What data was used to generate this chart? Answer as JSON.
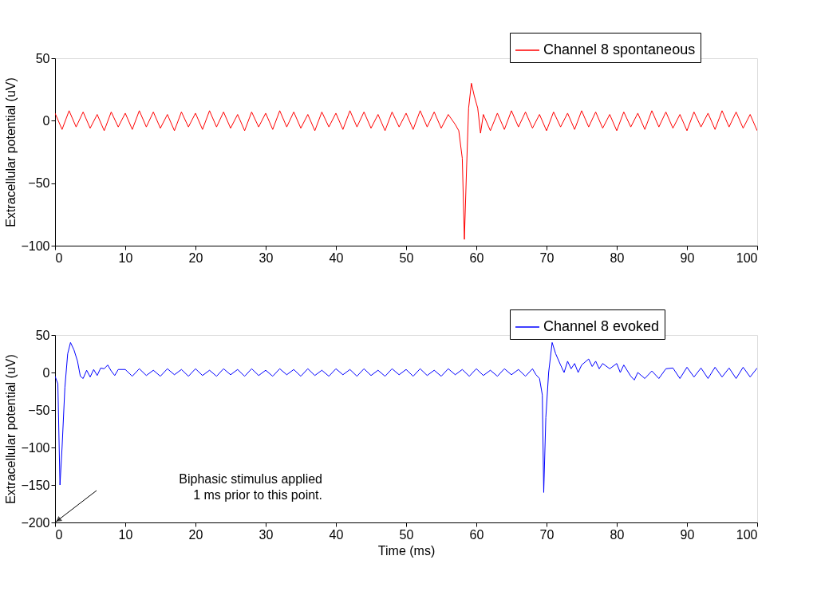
{
  "chart_data": [
    {
      "type": "line",
      "ylabel": "Extracellular potential (uV)",
      "xlim": [
        0,
        100
      ],
      "ylim": [
        -100,
        50
      ],
      "xticks": [
        0,
        10,
        20,
        30,
        40,
        50,
        60,
        70,
        80,
        90,
        100
      ],
      "yticks": [
        -100,
        -50,
        0,
        50
      ],
      "grid": false,
      "legend": "top right",
      "line_style": "solid",
      "marker": "none",
      "series": [
        {
          "name": "Channel 8 spontaneous",
          "color": "#ff0000",
          "x": [
            0,
            1,
            2,
            3,
            4,
            5,
            6,
            7,
            8,
            9,
            10,
            11,
            12,
            13,
            14,
            15,
            16,
            17,
            18,
            19,
            20,
            21,
            22,
            23,
            24,
            25,
            26,
            27,
            28,
            29,
            30,
            31,
            32,
            33,
            34,
            35,
            36,
            37,
            38,
            39,
            40,
            41,
            42,
            43,
            44,
            45,
            46,
            47,
            48,
            49,
            50,
            51,
            52,
            53,
            54,
            55,
            56,
            57,
            57.5,
            58,
            58.3,
            58.6,
            58.9,
            59.3,
            59.7,
            60.2,
            60.6,
            61,
            62,
            63,
            64,
            65,
            66,
            67,
            68,
            69,
            70,
            71,
            72,
            73,
            74,
            75,
            76,
            77,
            78,
            79,
            80,
            81,
            82,
            83,
            84,
            85,
            86,
            87,
            88,
            89,
            90,
            91,
            92,
            93,
            94,
            95,
            96,
            97,
            98,
            99,
            100
          ],
          "values": [
            6,
            -7,
            8,
            -5,
            7,
            -6,
            5,
            -8,
            7,
            -5,
            6,
            -7,
            8,
            -5,
            7,
            -6,
            5,
            -8,
            7,
            -5,
            6,
            -7,
            8,
            -5,
            7,
            -6,
            5,
            -8,
            7,
            -5,
            6,
            -7,
            8,
            -5,
            7,
            -6,
            5,
            -8,
            7,
            -5,
            6,
            -7,
            8,
            -5,
            7,
            -6,
            5,
            -8,
            7,
            -5,
            6,
            -7,
            8,
            -5,
            7,
            -6,
            5,
            -3,
            -8,
            -30,
            -95,
            -40,
            10,
            30,
            20,
            10,
            -10,
            5,
            -8,
            6,
            -7,
            8,
            -5,
            7,
            -6,
            5,
            -8,
            7,
            -5,
            6,
            -7,
            8,
            -5,
            7,
            -6,
            5,
            -8,
            7,
            -5,
            6,
            -7,
            8,
            -5,
            7,
            -6,
            5,
            -8,
            7,
            -5,
            6,
            -7,
            8,
            -5,
            7,
            -6,
            5,
            -8
          ]
        }
      ]
    },
    {
      "type": "line",
      "xlabel": "Time (ms)",
      "ylabel": "Extracellular potential (uV)",
      "xlim": [
        0,
        100
      ],
      "ylim": [
        -200,
        50
      ],
      "xticks": [
        0,
        10,
        20,
        30,
        40,
        50,
        60,
        70,
        80,
        90,
        100
      ],
      "yticks": [
        -200,
        -150,
        -100,
        -50,
        0,
        50
      ],
      "grid": false,
      "legend": "top right",
      "line_style": "solid",
      "marker": "none",
      "annotations": [
        "Biphasic stimulus applied\n1 ms prior to this point."
      ],
      "series": [
        {
          "name": "Channel 8 evoked",
          "color": "#0000ff",
          "x": [
            0,
            0.4,
            0.7,
            1.0,
            1.4,
            1.8,
            2.2,
            2.7,
            3.2,
            3.6,
            4,
            4.5,
            5,
            5.5,
            6,
            6.5,
            7,
            7.5,
            8,
            8.5,
            9,
            10,
            11,
            12,
            13,
            14,
            15,
            16,
            17,
            18,
            19,
            20,
            21,
            22,
            23,
            24,
            25,
            26,
            27,
            28,
            29,
            30,
            31,
            32,
            33,
            34,
            35,
            36,
            37,
            38,
            39,
            40,
            41,
            42,
            43,
            44,
            45,
            46,
            47,
            48,
            49,
            50,
            51,
            52,
            53,
            54,
            55,
            56,
            57,
            58,
            59,
            60,
            61,
            62,
            63,
            64,
            65,
            66,
            67,
            68,
            68.5,
            69,
            69.4,
            69.6,
            69.9,
            70.3,
            70.8,
            71.3,
            72,
            72.5,
            73,
            73.5,
            74,
            74.5,
            75,
            76,
            76.5,
            77,
            77.5,
            78,
            79,
            80,
            80.5,
            81,
            82,
            82.5,
            83,
            84,
            85,
            86,
            87,
            88,
            89,
            90,
            91,
            92,
            93,
            94,
            95,
            96,
            97,
            98,
            99,
            100
          ],
          "values": [
            -5,
            -15,
            -150,
            -100,
            -20,
            25,
            40,
            30,
            15,
            -5,
            -8,
            3,
            -6,
            4,
            -4,
            6,
            5,
            10,
            2,
            -4,
            4,
            4,
            -5,
            5,
            -4,
            3,
            -5,
            5,
            -3,
            4,
            -5,
            5,
            -4,
            3,
            -5,
            5,
            -3,
            4,
            -5,
            5,
            -4,
            3,
            -5,
            5,
            -3,
            4,
            -5,
            5,
            -4,
            3,
            -5,
            5,
            -3,
            4,
            -5,
            5,
            -4,
            3,
            -5,
            5,
            -3,
            4,
            -5,
            5,
            -4,
            3,
            -5,
            5,
            -3,
            4,
            -5,
            5,
            -4,
            3,
            -5,
            5,
            -3,
            4,
            -5,
            5,
            -3,
            -8,
            -30,
            -160,
            -60,
            0,
            40,
            25,
            10,
            0,
            15,
            5,
            12,
            0,
            10,
            18,
            8,
            15,
            5,
            12,
            5,
            12,
            0,
            10,
            -5,
            -10,
            0,
            -8,
            2,
            -8,
            5,
            6,
            -8,
            7,
            -6,
            6,
            -8,
            7,
            -6,
            6,
            -8,
            7,
            -6,
            6
          ]
        }
      ]
    }
  ]
}
